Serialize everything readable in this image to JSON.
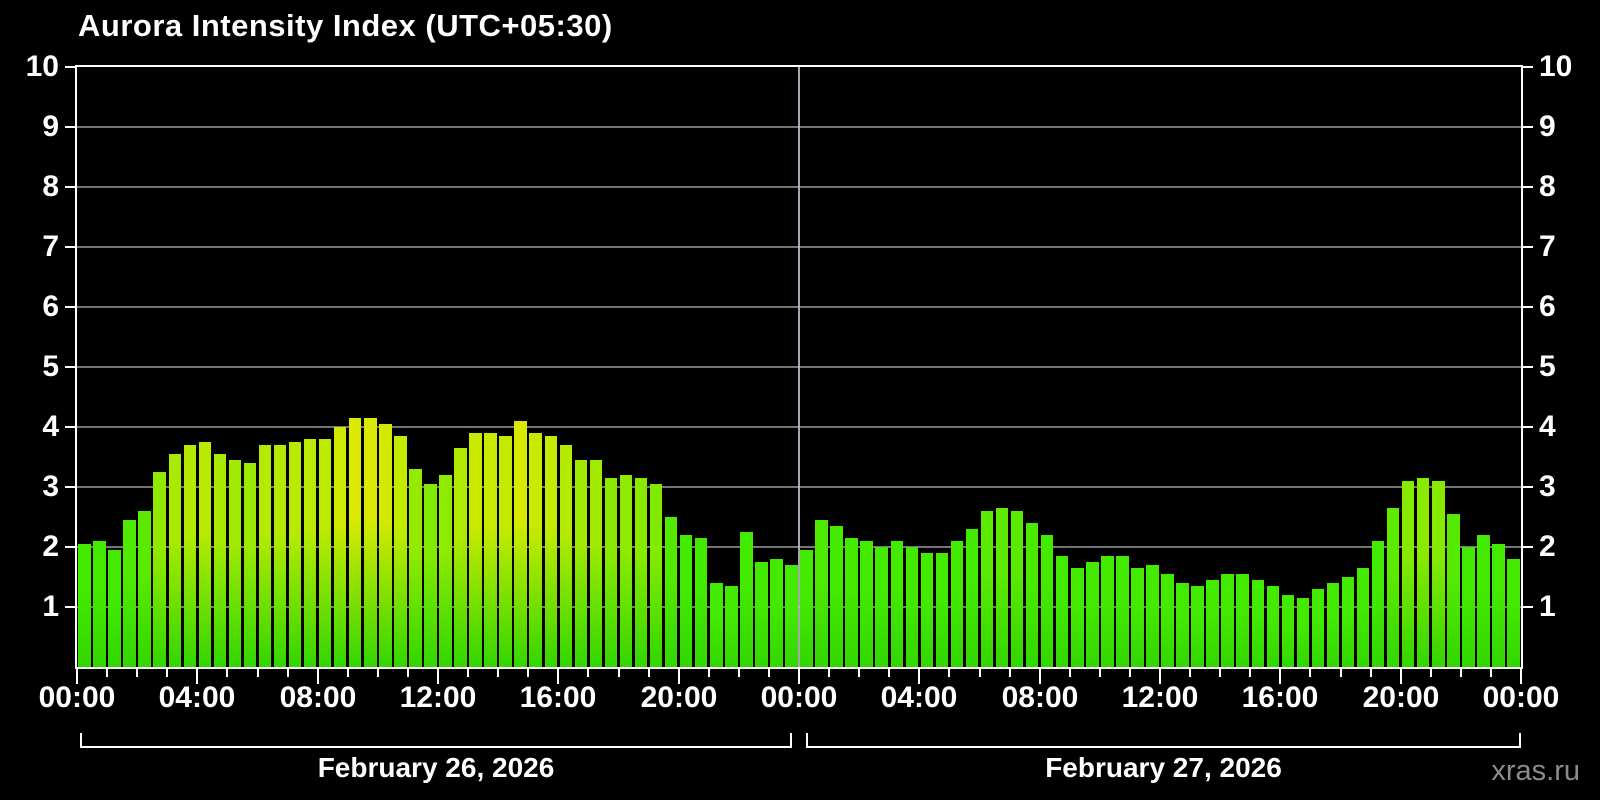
{
  "title": "Aurora Intensity Index (UTC+05:30)",
  "watermark": "xras.ru",
  "chart_data": {
    "type": "bar",
    "title": "Aurora Intensity Index (UTC+05:30)",
    "ylim": [
      0,
      10
    ],
    "y_ticks": [
      1,
      2,
      3,
      4,
      5,
      6,
      7,
      8,
      9,
      10
    ],
    "x_hour_label_step": 4,
    "x_tick_labels": [
      "00:00",
      "04:00",
      "08:00",
      "12:00",
      "16:00",
      "20:00",
      "00:00",
      "04:00",
      "08:00",
      "12:00",
      "16:00",
      "20:00",
      "00:00"
    ],
    "interval_minutes": 30,
    "grid": true,
    "background": "#000000",
    "frame_color": "#ffffff",
    "gridline_color": "#757575",
    "bar_color_low": "#3ad400",
    "bar_color_high": "#d8ee00",
    "days": [
      {
        "date": "February 26, 2026",
        "values": [
          2.05,
          2.1,
          1.95,
          2.45,
          2.6,
          3.25,
          3.55,
          3.7,
          3.75,
          3.55,
          3.45,
          3.4,
          3.7,
          3.7,
          3.75,
          3.8,
          3.8,
          4.0,
          4.15,
          4.15,
          4.05,
          3.85,
          3.3,
          3.05,
          3.2,
          3.65,
          3.9,
          3.9,
          3.85,
          4.1,
          3.9,
          3.85,
          3.7,
          3.45,
          3.45,
          3.15,
          3.2,
          3.15,
          3.05,
          2.5,
          2.2,
          2.15,
          1.4,
          1.35,
          2.25,
          1.75,
          1.8,
          1.7
        ]
      },
      {
        "date": "February 27, 2026",
        "values": [
          1.95,
          2.45,
          2.35,
          2.15,
          2.1,
          2.0,
          2.1,
          2.0,
          1.9,
          1.9,
          2.1,
          2.3,
          2.6,
          2.65,
          2.6,
          2.4,
          2.2,
          1.85,
          1.65,
          1.75,
          1.85,
          1.85,
          1.65,
          1.7,
          1.55,
          1.4,
          1.35,
          1.45,
          1.55,
          1.55,
          1.45,
          1.35,
          1.2,
          1.15,
          1.3,
          1.4,
          1.5,
          1.65,
          2.1,
          2.65,
          3.1,
          3.15,
          3.1,
          2.55,
          2.0,
          2.2,
          2.05,
          1.8
        ]
      }
    ]
  }
}
